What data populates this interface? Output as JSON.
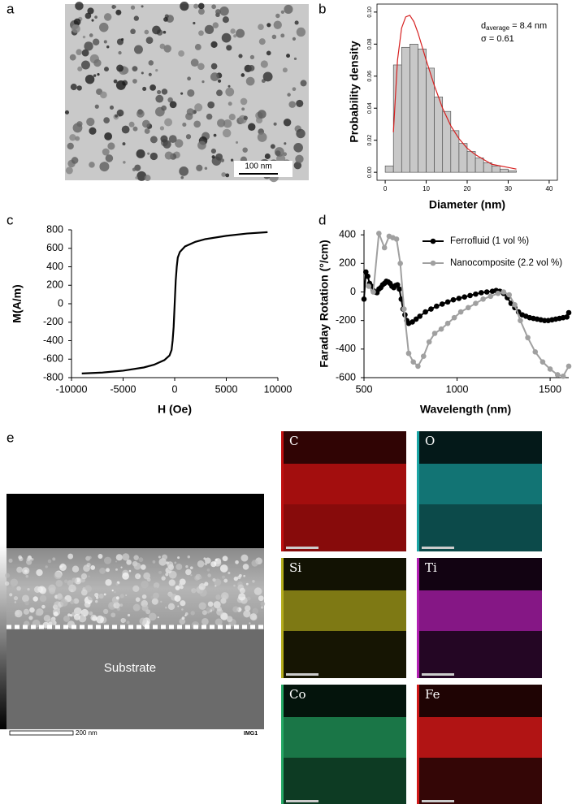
{
  "figure": {
    "panel_labels": [
      "a",
      "b",
      "c",
      "d",
      "e"
    ],
    "tem_scale_bar": "100 nm",
    "stem": {
      "substrate_label": "Substrate",
      "scale_bar": "200 nm",
      "image_id": "IMG1"
    },
    "eds_maps": [
      {
        "element": "C",
        "color": "#c01010"
      },
      {
        "element": "O",
        "color": "#1aa5a5"
      },
      {
        "element": "Si",
        "color": "#b3ac1c"
      },
      {
        "element": "Ti",
        "color": "#b21fb2"
      },
      {
        "element": "Co",
        "color": "#25a865"
      },
      {
        "element": "Fe",
        "color": "#d01818"
      }
    ]
  },
  "chart_data": [
    {
      "type": "histogram",
      "xlabel": "Diameter (nm)",
      "ylabel": "Probability density",
      "bins": [
        0,
        2,
        4,
        6,
        8,
        10,
        12,
        14,
        16,
        18,
        20,
        22,
        24,
        26,
        28,
        30,
        32
      ],
      "counts": [
        0.004,
        0.067,
        0.078,
        0.08,
        0.077,
        0.065,
        0.047,
        0.038,
        0.026,
        0.018,
        0.013,
        0.009,
        0.006,
        0.004,
        0.002,
        0.001
      ],
      "color": "#c8c8c8",
      "fit": {
        "x": [
          2,
          3,
          4,
          5,
          6,
          7,
          8,
          10,
          12,
          14,
          16,
          18,
          20,
          22,
          24,
          26,
          28,
          30,
          32
        ],
        "values": [
          0.025,
          0.07,
          0.09,
          0.097,
          0.098,
          0.094,
          0.087,
          0.07,
          0.054,
          0.04,
          0.029,
          0.021,
          0.015,
          0.011,
          0.008,
          0.005,
          0.004,
          0.003,
          0.002
        ],
        "color": "#d62020"
      },
      "xlim": [
        -2,
        42
      ],
      "ylim": [
        -0.005,
        0.105
      ],
      "xticks": [
        0,
        10,
        20,
        30,
        40
      ],
      "yticks": [
        {
          "value": 0,
          "label": "0.00"
        },
        0.02,
        0.04,
        0.06,
        0.08,
        {
          "value": 0.1,
          "label": "0.10"
        }
      ],
      "annotations": [
        {
          "main": "d",
          "sub": "average",
          "rest": " = 8.4 nm"
        },
        {
          "main": "σ = 0.61"
        }
      ]
    },
    {
      "type": "line",
      "xlabel": "H (Oe)",
      "ylabel": "M(A/m)",
      "x": [
        -9000,
        -7000,
        -5000,
        -3000,
        -2000,
        -1000,
        -500,
        -300,
        -200,
        -100,
        0,
        100,
        200,
        300,
        500,
        1000,
        2000,
        3000,
        5000,
        7000,
        9000
      ],
      "values": [
        -755,
        -745,
        -725,
        -690,
        -660,
        -610,
        -560,
        -500,
        -400,
        -250,
        0,
        250,
        400,
        500,
        560,
        620,
        670,
        700,
        735,
        760,
        775
      ],
      "color": "#000000",
      "markers": false,
      "xlim": [
        -10000,
        10000
      ],
      "ylim": [
        -800,
        800
      ],
      "xticks": [
        -10000,
        -5000,
        0,
        5000,
        10000
      ],
      "yticks": [
        -800,
        -600,
        -400,
        -200,
        0,
        200,
        400,
        600,
        800
      ]
    },
    {
      "type": "line",
      "xlabel": "Wavelength (nm)",
      "ylabel": "Faraday Rotation (°/cm)",
      "markers": true,
      "legend": "upper-right",
      "series": [
        {
          "name": "Ferrofluid (1 vol %)",
          "color": "#000000",
          "x": [
            500,
            510,
            520,
            530,
            540,
            550,
            560,
            570,
            580,
            590,
            600,
            610,
            620,
            630,
            640,
            650,
            660,
            670,
            680,
            690,
            700,
            710,
            720,
            730,
            740,
            760,
            780,
            800,
            830,
            860,
            890,
            920,
            950,
            980,
            1010,
            1040,
            1070,
            1100,
            1130,
            1160,
            1190,
            1210,
            1230,
            1250,
            1270,
            1290,
            1310,
            1330,
            1350,
            1370,
            1390,
            1410,
            1430,
            1450,
            1470,
            1490,
            1510,
            1530,
            1550,
            1570,
            1590,
            1600
          ],
          "values": [
            -50,
            140,
            110,
            60,
            40,
            10,
            0,
            -5,
            20,
            30,
            50,
            60,
            75,
            70,
            60,
            40,
            30,
            45,
            50,
            20,
            -50,
            -120,
            -160,
            -200,
            -220,
            -210,
            -190,
            -170,
            -140,
            -120,
            -100,
            -85,
            -70,
            -55,
            -45,
            -35,
            -25,
            -15,
            -5,
            0,
            5,
            10,
            5,
            -10,
            -40,
            -80,
            -110,
            -140,
            -160,
            -170,
            -180,
            -185,
            -190,
            -195,
            -200,
            -200,
            -195,
            -190,
            -185,
            -180,
            -175,
            -145
          ]
        },
        {
          "name": "Nanocomposite (2.2 vol %)",
          "color": "#a0a0a0",
          "x": [
            525,
            550,
            580,
            610,
            635,
            655,
            675,
            695,
            715,
            740,
            765,
            790,
            820,
            850,
            880,
            915,
            950,
            985,
            1020,
            1060,
            1100,
            1140,
            1180,
            1220,
            1250,
            1280,
            1310,
            1340,
            1380,
            1420,
            1460,
            1500,
            1540,
            1570,
            1600
          ],
          "values": [
            40,
            0,
            410,
            310,
            390,
            380,
            370,
            200,
            -120,
            -430,
            -490,
            -520,
            -450,
            -350,
            -290,
            -260,
            -220,
            -180,
            -140,
            -110,
            -80,
            -50,
            -30,
            -10,
            0,
            -20,
            -90,
            -200,
            -320,
            -420,
            -490,
            -540,
            -580,
            -590,
            -520
          ]
        }
      ],
      "xlim": [
        500,
        1600
      ],
      "ylim": [
        -600,
        435
      ],
      "xticks": [
        500,
        1000,
        1500
      ],
      "yticks": [
        -600,
        -400,
        -200,
        0,
        200,
        400
      ]
    }
  ]
}
